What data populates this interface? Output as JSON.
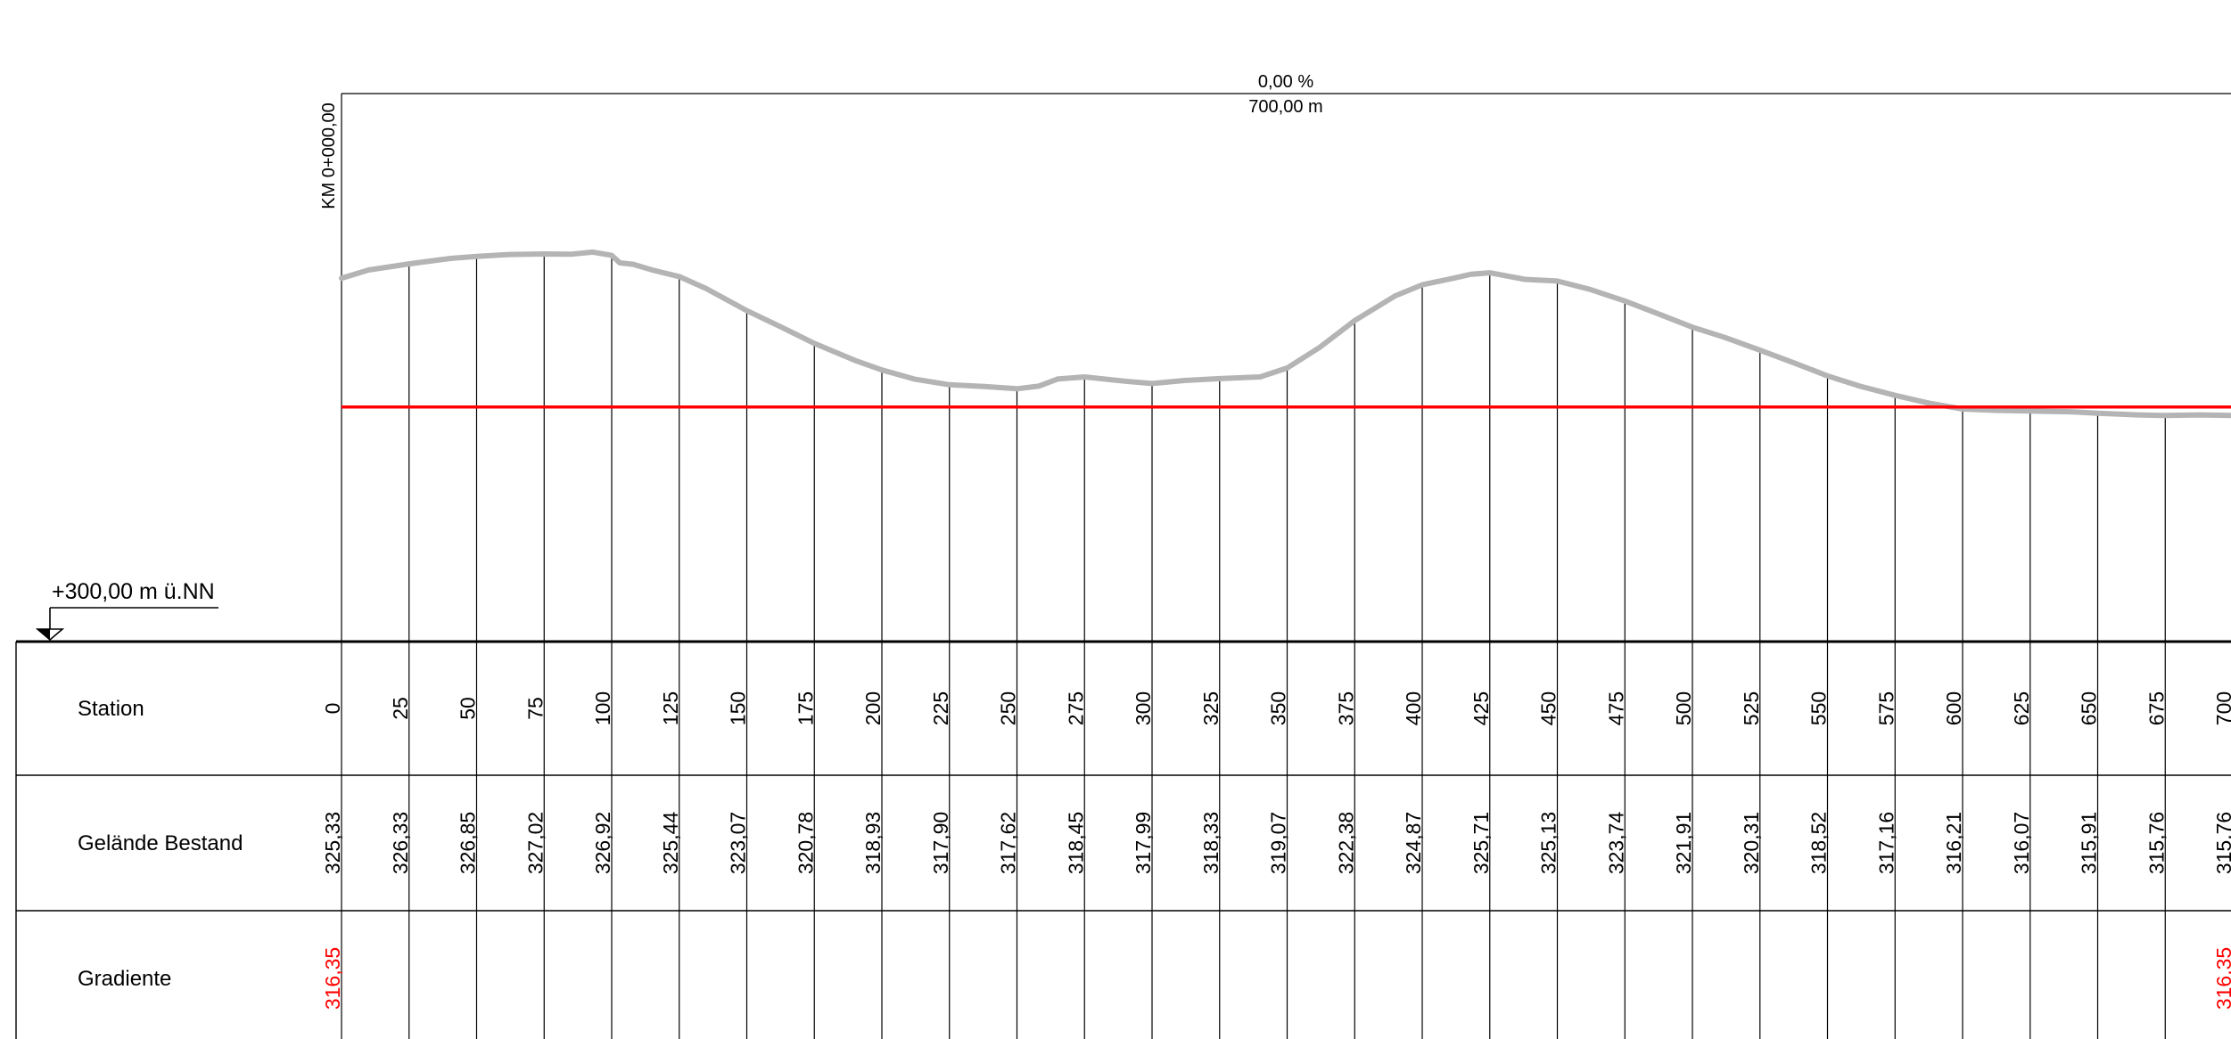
{
  "chart_data": {
    "type": "line",
    "gradient_label": "0,00 %",
    "length_label": "700,00 m",
    "start_station_label": "KM 0+000,00",
    "reference_level_label": "+300,00 m ü.NN",
    "reference_level": 300,
    "x_range": [
      0,
      700
    ],
    "series": [
      {
        "name": "Gelände Bestand",
        "color": "#b4b4b4",
        "points": [
          [
            0,
            325.33
          ],
          [
            10,
            325.9
          ],
          [
            25,
            326.33
          ],
          [
            40,
            326.7
          ],
          [
            50,
            326.85
          ],
          [
            62,
            326.98
          ],
          [
            75,
            327.02
          ],
          [
            85,
            327.0
          ],
          [
            93,
            327.15
          ],
          [
            100,
            326.92
          ],
          [
            103,
            326.4
          ],
          [
            108,
            326.3
          ],
          [
            115,
            325.9
          ],
          [
            125,
            325.44
          ],
          [
            135,
            324.6
          ],
          [
            150,
            323.07
          ],
          [
            163,
            321.9
          ],
          [
            175,
            320.78
          ],
          [
            190,
            319.6
          ],
          [
            200,
            318.93
          ],
          [
            212,
            318.3
          ],
          [
            225,
            317.9
          ],
          [
            238,
            317.78
          ],
          [
            250,
            317.62
          ],
          [
            258,
            317.8
          ],
          [
            265,
            318.3
          ],
          [
            275,
            318.45
          ],
          [
            290,
            318.15
          ],
          [
            300,
            317.99
          ],
          [
            312,
            318.2
          ],
          [
            325,
            318.33
          ],
          [
            340,
            318.45
          ],
          [
            350,
            319.07
          ],
          [
            362,
            320.5
          ],
          [
            375,
            322.38
          ],
          [
            390,
            324.1
          ],
          [
            400,
            324.87
          ],
          [
            412,
            325.35
          ],
          [
            418,
            325.6
          ],
          [
            425,
            325.71
          ],
          [
            438,
            325.25
          ],
          [
            450,
            325.13
          ],
          [
            462,
            324.55
          ],
          [
            475,
            323.74
          ],
          [
            488,
            322.8
          ],
          [
            500,
            321.91
          ],
          [
            512,
            321.2
          ],
          [
            525,
            320.31
          ],
          [
            538,
            319.4
          ],
          [
            550,
            318.52
          ],
          [
            562,
            317.8
          ],
          [
            575,
            317.16
          ],
          [
            588,
            316.6
          ],
          [
            600,
            316.21
          ],
          [
            612,
            316.12
          ],
          [
            625,
            316.07
          ],
          [
            640,
            316.02
          ],
          [
            650,
            315.91
          ],
          [
            665,
            315.8
          ],
          [
            675,
            315.76
          ],
          [
            688,
            315.8
          ],
          [
            700,
            315.76
          ]
        ]
      },
      {
        "name": "Gradiente",
        "color": "#ff0000",
        "points": [
          [
            0,
            316.35
          ],
          [
            700,
            316.35
          ]
        ]
      }
    ],
    "table": {
      "rows": [
        {
          "label": "Station",
          "values": [
            "0",
            "25",
            "50",
            "75",
            "100",
            "125",
            "150",
            "175",
            "200",
            "225",
            "250",
            "275",
            "300",
            "325",
            "350",
            "375",
            "400",
            "425",
            "450",
            "475",
            "500",
            "525",
            "550",
            "575",
            "600",
            "625",
            "650",
            "675",
            "700"
          ]
        },
        {
          "label": "Gelände Bestand",
          "values": [
            "325,33",
            "326,33",
            "326,85",
            "327,02",
            "326,92",
            "325,44",
            "323,07",
            "320,78",
            "318,93",
            "317,90",
            "317,62",
            "318,45",
            "317,99",
            "318,33",
            "319,07",
            "322,38",
            "324,87",
            "325,71",
            "325,13",
            "323,74",
            "321,91",
            "320,31",
            "318,52",
            "317,16",
            "316,21",
            "316,07",
            "315,91",
            "315,76",
            "315,76"
          ]
        },
        {
          "label": "Gradiente",
          "values": [
            "316,35",
            "",
            "",
            "",
            "",
            "",
            "",
            "",
            "",
            "",
            "",
            "",
            "",
            "",
            "",
            "",
            "",
            "",
            "",
            "",
            "",
            "",
            "",
            "",
            "",
            "",
            "",
            "",
            "316,35"
          ],
          "color": "#ff0000"
        }
      ]
    }
  }
}
